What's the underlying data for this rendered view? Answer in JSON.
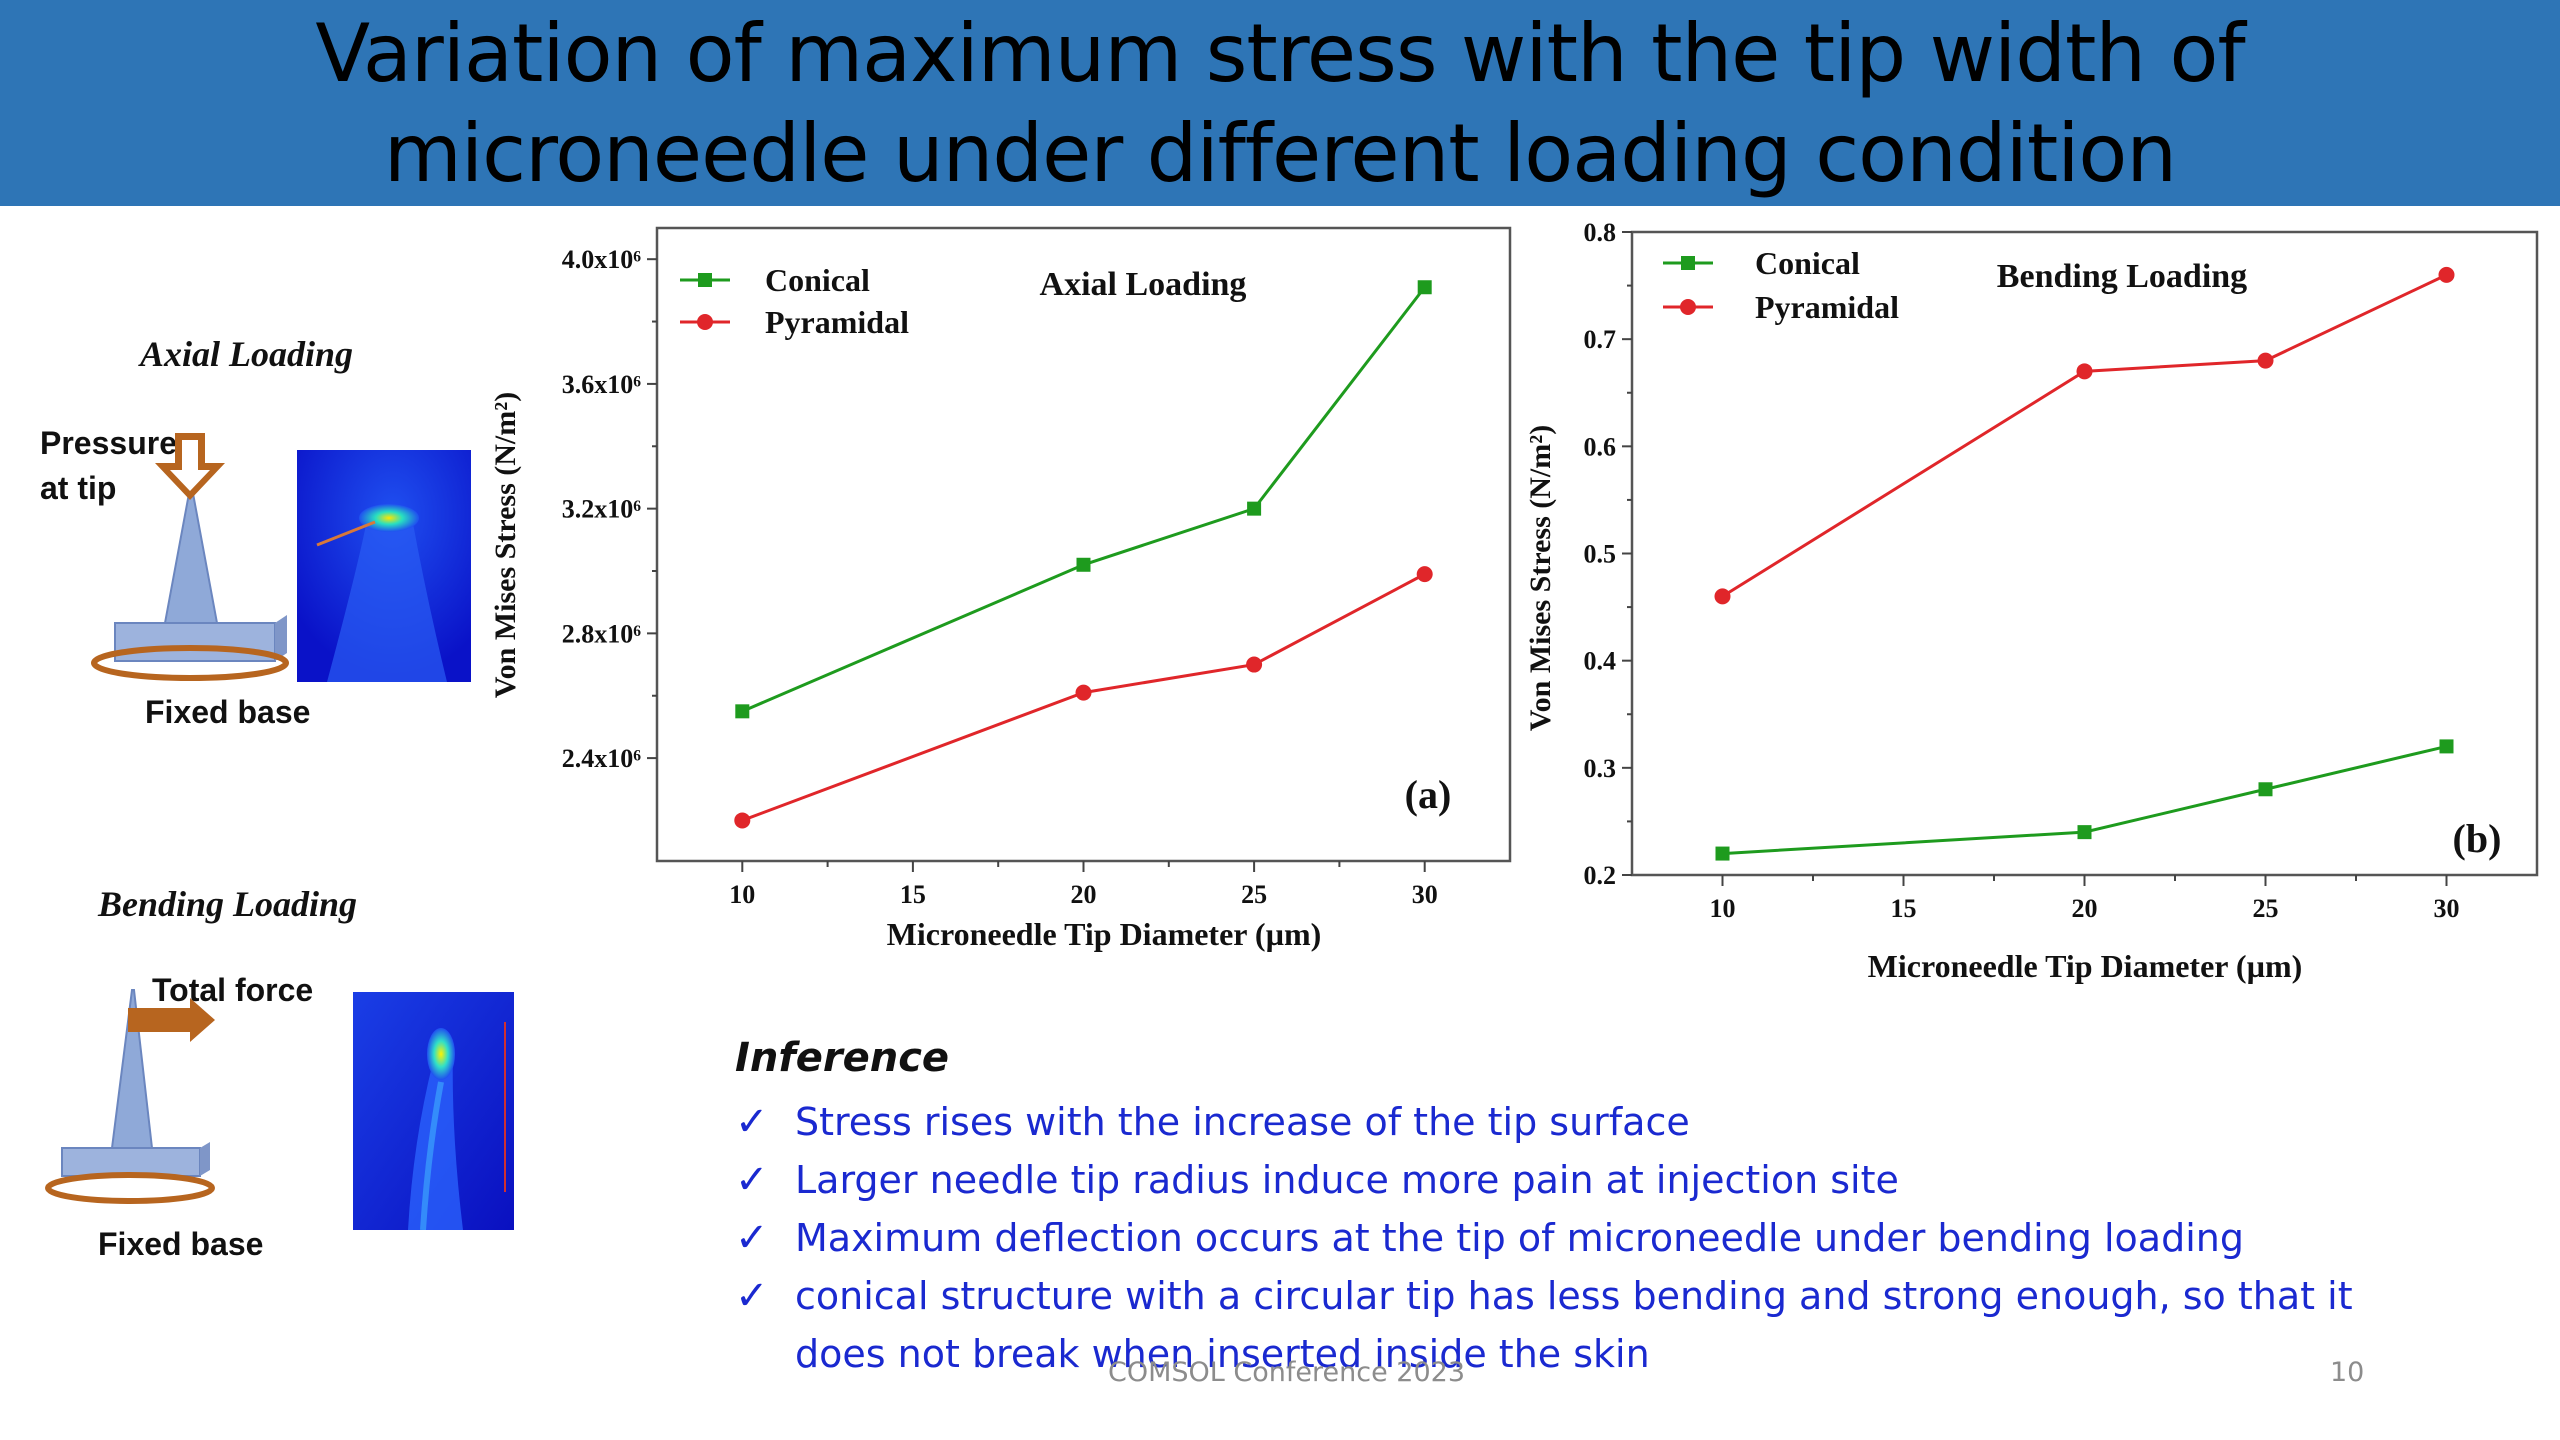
{
  "title": {
    "line1": "Variation of maximum stress with the tip width of",
    "line2": "microneedle under different loading condition"
  },
  "schematic": {
    "axial": {
      "title": "Axial Loading",
      "load_label_line1": "Pressure",
      "load_label_line2": "at tip",
      "base_label": "Fixed base"
    },
    "bending": {
      "title": "Bending Loading",
      "load_label": "Total force",
      "base_label": "Fixed base"
    }
  },
  "colors": {
    "conical": "#1e9b1e",
    "pyramidal": "#e0262a",
    "header_bg": "#2e75b6",
    "inference_text": "#1a29d0"
  },
  "chart_data": [
    {
      "type": "line",
      "title": "Axial Loading",
      "panel_label": "(a)",
      "xlabel": "Microneedle Tip Diameter (µm)",
      "ylabel": "Von Mises Stress (N/m²)",
      "x": [
        10,
        15,
        20,
        25,
        30
      ],
      "xticks": [
        "10",
        "15",
        "20",
        "25",
        "30"
      ],
      "yticks": [
        "2.4x10⁶",
        "2.8x10⁶",
        "3.2x10⁶",
        "3.6x10⁶",
        "4.0x10⁶"
      ],
      "ytick_values": [
        2400000,
        2800000,
        3200000,
        3600000,
        4000000
      ],
      "xlim": [
        7.5,
        32.5
      ],
      "ylim": [
        2070000,
        4100000
      ],
      "legend_position": "top-left",
      "series": [
        {
          "name": "Conical",
          "marker": "square",
          "x": [
            10,
            20,
            25,
            30
          ],
          "values": [
            2550000,
            3020000,
            3200000,
            3910000
          ]
        },
        {
          "name": "Pyramidal",
          "marker": "circle",
          "x": [
            10,
            20,
            25,
            30
          ],
          "values": [
            2200000,
            2610000,
            2700000,
            2990000
          ]
        }
      ]
    },
    {
      "type": "line",
      "title": "Bending Loading",
      "panel_label": "(b)",
      "xlabel": "Microneedle Tip Diameter (µm)",
      "ylabel": "Von Mises Stress (N/m²)",
      "x": [
        10,
        15,
        20,
        25,
        30
      ],
      "xticks": [
        "10",
        "15",
        "20",
        "25",
        "30"
      ],
      "yticks": [
        "0.2",
        "0.3",
        "0.4",
        "0.5",
        "0.6",
        "0.7",
        "0.8"
      ],
      "ytick_values": [
        0.2,
        0.3,
        0.4,
        0.5,
        0.6,
        0.7,
        0.8
      ],
      "xlim": [
        7.5,
        32.5
      ],
      "ylim": [
        0.2,
        0.8
      ],
      "legend_position": "top-left",
      "series": [
        {
          "name": "Conical",
          "marker": "square",
          "x": [
            10,
            20,
            25,
            30
          ],
          "values": [
            0.22,
            0.24,
            0.28,
            0.32
          ]
        },
        {
          "name": "Pyramidal",
          "marker": "circle",
          "x": [
            10,
            20,
            25,
            30
          ],
          "values": [
            0.46,
            0.67,
            0.68,
            0.76
          ]
        }
      ]
    }
  ],
  "inference": {
    "title": "Inference",
    "check_symbol": "✓",
    "items": [
      "Stress rises with the increase of the tip surface",
      "Larger needle tip radius induce more pain at injection site",
      "Maximum deflection occurs at the tip of microneedle under bending loading",
      "conical structure with a circular tip has less bending and strong enough, so that it does not break when inserted inside the skin"
    ]
  },
  "footer": {
    "conference": "COMSOL Conference 2023",
    "page_number": "10"
  }
}
